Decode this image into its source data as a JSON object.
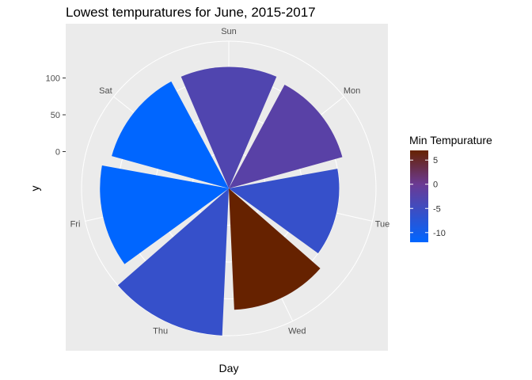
{
  "chart_data": {
    "type": "bar",
    "coord": "polar",
    "title": "Lowest tempuratures for June, 2015-2017",
    "xlabel": "Day",
    "ylabel": "y",
    "categories": [
      "Sun",
      "Mon",
      "Tue",
      "Wed",
      "Thu",
      "Fri",
      "Sat"
    ],
    "values": [
      115,
      110,
      100,
      115,
      150,
      125,
      115
    ],
    "color_values": [
      -3,
      -2,
      -6,
      7,
      -6,
      -12,
      -12
    ],
    "y_ticks": [
      0,
      50,
      100
    ],
    "ylim": [
      -50,
      150
    ],
    "grid": true,
    "legend": {
      "title": "Min Tempurature",
      "position": "right",
      "ticks": [
        5,
        0,
        -5,
        -10
      ],
      "range": [
        -12,
        7
      ],
      "color_low": "#0066ff",
      "color_mid": "#6b3a94",
      "color_high": "#662200"
    },
    "background": "#ebebeb"
  }
}
